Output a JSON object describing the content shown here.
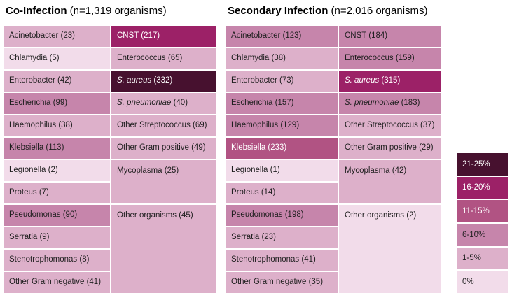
{
  "chart_data": {
    "type": "heatmap",
    "unit": "percent of organisms within infection group",
    "legend": {
      "position": "right",
      "buckets": [
        {
          "label": "21-25%",
          "color": "#47112f",
          "text_color": "#ffffff"
        },
        {
          "label": "16-20%",
          "color": "#9c2167",
          "text_color": "#ffffff"
        },
        {
          "label": "11-15%",
          "color": "#b15383",
          "text_color": "#ffffff"
        },
        {
          "label": "6-10%",
          "color": "#c685ab",
          "text_color": "#1f1f1f"
        },
        {
          "label": "1-5%",
          "color": "#ddb0ca",
          "text_color": "#1f1f1f"
        },
        {
          "label": "0%",
          "color": "#f2dcea",
          "text_color": "#1f1f1f"
        }
      ]
    },
    "tables": [
      {
        "title_bold": "Co-Infection",
        "title_rest": " (n=1,319 organisms)",
        "total_organisms": 1319,
        "col_gram_negative": [
          {
            "name": "Acinetobacter",
            "count": 23,
            "bucket": "1-5%"
          },
          {
            "name": "Chlamydia",
            "count": 5,
            "bucket": "0%"
          },
          {
            "name": "Enterobacter",
            "count": 42,
            "bucket": "1-5%"
          },
          {
            "name": "Escherichia",
            "count": 99,
            "bucket": "6-10%"
          },
          {
            "name": "Haemophilus",
            "count": 38,
            "bucket": "1-5%"
          },
          {
            "name": "Klebsiella",
            "count": 113,
            "bucket": "6-10%"
          },
          {
            "name": "Legionella",
            "count": 2,
            "bucket": "0%"
          },
          {
            "name": "Proteus",
            "count": 7,
            "bucket": "1-5%"
          },
          {
            "name": "Pseudomonas",
            "count": 90,
            "bucket": "6-10%"
          },
          {
            "name": "Serratia",
            "count": 9,
            "bucket": "1-5%"
          },
          {
            "name": "Stenotrophomonas",
            "count": 8,
            "bucket": "1-5%"
          },
          {
            "name": "Other Gram negative",
            "count": 41,
            "bucket": "1-5%"
          }
        ],
        "col_gram_positive": [
          {
            "name": "CNST",
            "count": 217,
            "bucket": "16-20%"
          },
          {
            "name": "Enterococcus",
            "count": 65,
            "bucket": "1-5%"
          },
          {
            "name": "S. aureus",
            "count": 332,
            "bucket": "21-25%",
            "italic": true
          },
          {
            "name": "S. pneumoniae",
            "count": 40,
            "bucket": "1-5%",
            "italic": true
          },
          {
            "name": "Other Streptococcus",
            "count": 69,
            "bucket": "1-5%"
          },
          {
            "name": "Other Gram positive",
            "count": 49,
            "bucket": "1-5%"
          },
          {
            "name": "Mycoplasma",
            "count": 25,
            "bucket": "1-5%",
            "span": 2
          },
          {
            "name": "Other organisms",
            "count": 45,
            "bucket": "1-5%",
            "span": 4
          }
        ]
      },
      {
        "title_bold": "Secondary Infection",
        "title_rest": " (n=2,016 organisms)",
        "total_organisms": 2016,
        "col_gram_negative": [
          {
            "name": "Acinetobacter",
            "count": 123,
            "bucket": "6-10%"
          },
          {
            "name": "Chlamydia",
            "count": 38,
            "bucket": "1-5%"
          },
          {
            "name": "Enterobacter",
            "count": 73,
            "bucket": "1-5%"
          },
          {
            "name": "Escherichia",
            "count": 157,
            "bucket": "6-10%"
          },
          {
            "name": "Haemophilus",
            "count": 129,
            "bucket": "6-10%"
          },
          {
            "name": "Klebsiella",
            "count": 233,
            "bucket": "11-15%"
          },
          {
            "name": "Legionella",
            "count": 1,
            "bucket": "0%"
          },
          {
            "name": "Proteus",
            "count": 14,
            "bucket": "1-5%"
          },
          {
            "name": "Pseudomonas",
            "count": 198,
            "bucket": "6-10%"
          },
          {
            "name": "Serratia",
            "count": 23,
            "bucket": "1-5%"
          },
          {
            "name": "Stenotrophomonas",
            "count": 41,
            "bucket": "1-5%"
          },
          {
            "name": "Other Gram negative",
            "count": 35,
            "bucket": "1-5%"
          }
        ],
        "col_gram_positive": [
          {
            "name": "CNST",
            "count": 184,
            "bucket": "6-10%"
          },
          {
            "name": "Enterococcus",
            "count": 159,
            "bucket": "6-10%"
          },
          {
            "name": "S. aureus",
            "count": 315,
            "bucket": "16-20%",
            "italic": true
          },
          {
            "name": "S. pneumoniae",
            "count": 183,
            "bucket": "6-10%",
            "italic": true
          },
          {
            "name": "Other Streptococcus",
            "count": 37,
            "bucket": "1-5%"
          },
          {
            "name": "Other Gram positive",
            "count": 29,
            "bucket": "1-5%"
          },
          {
            "name": "Mycoplasma",
            "count": 42,
            "bucket": "1-5%",
            "span": 2
          },
          {
            "name": "Other organisms",
            "count": 2,
            "bucket": "0%",
            "span": 4
          }
        ]
      }
    ]
  }
}
